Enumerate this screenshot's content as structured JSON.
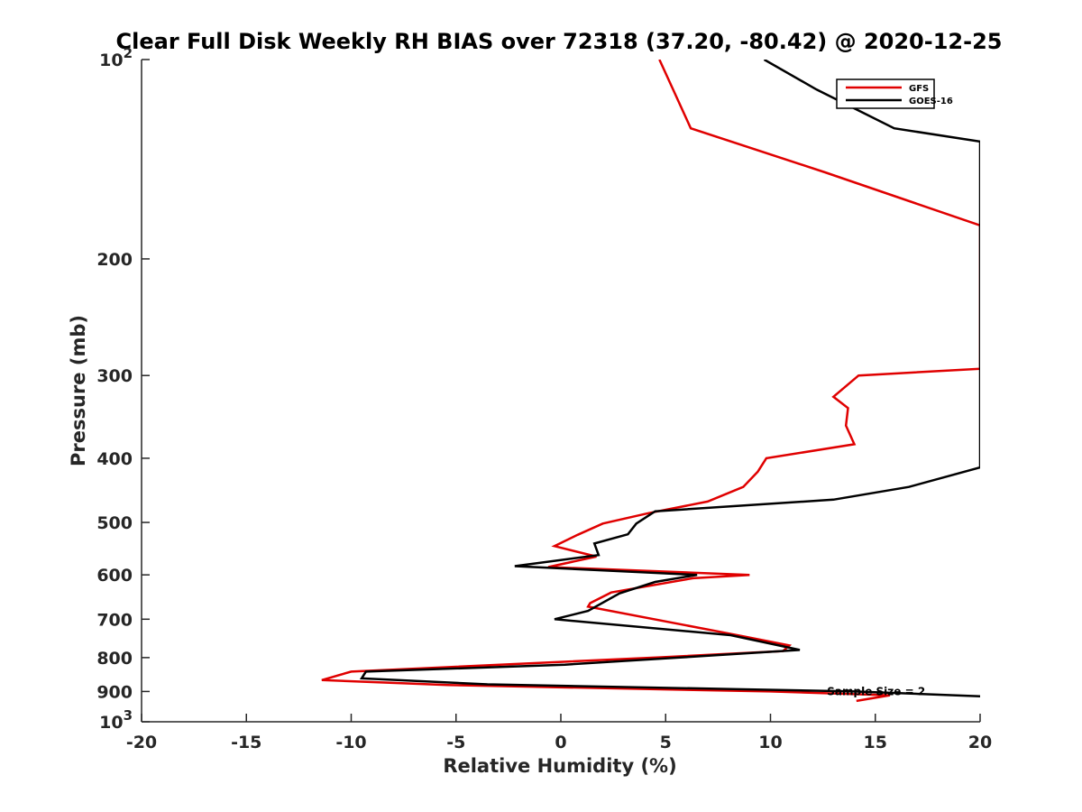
{
  "chart_data": {
    "type": "line",
    "title": "Clear Full Disk Weekly RH BIAS over 72318 (37.20, -80.42) @ 2020-12-25",
    "xlabel": "Relative Humidity (%)",
    "ylabel": "Pressure (mb)",
    "xlim": [
      -20,
      20
    ],
    "ylim": [
      100,
      1000
    ],
    "y_scale": "log",
    "y_reversed": true,
    "grid": false,
    "legend_position": "top-right",
    "x_ticks": [
      "-20",
      "-15",
      "-10",
      "-5",
      "0",
      "5",
      "10",
      "15",
      "20"
    ],
    "x_tick_values": [
      -20,
      -15,
      -10,
      -5,
      0,
      5,
      10,
      15,
      20
    ],
    "y_ticks": [
      {
        "value": 100,
        "base": "10",
        "exp": "2"
      },
      {
        "value": 200,
        "base": "200",
        "exp": ""
      },
      {
        "value": 300,
        "base": "300",
        "exp": ""
      },
      {
        "value": 400,
        "base": "400",
        "exp": ""
      },
      {
        "value": 500,
        "base": "500",
        "exp": ""
      },
      {
        "value": 600,
        "base": "600",
        "exp": ""
      },
      {
        "value": 700,
        "base": "700",
        "exp": ""
      },
      {
        "value": 800,
        "base": "800",
        "exp": ""
      },
      {
        "value": 900,
        "base": "900",
        "exp": ""
      },
      {
        "value": 1000,
        "base": "10",
        "exp": "3"
      }
    ],
    "annotation": "Sample Size = 2",
    "annotation_at": {
      "x": 12.7,
      "p": 900
    },
    "series": [
      {
        "name": "GFS",
        "color": "#e00000",
        "points": [
          {
            "x": 4.7,
            "p": 100
          },
          {
            "x": 5.3,
            "p": 110
          },
          {
            "x": 6.2,
            "p": 127
          },
          {
            "x": 12.6,
            "p": 148
          },
          {
            "x": 20,
            "p": 178
          },
          {
            "x": 20,
            "p": 293
          },
          {
            "x": 14.2,
            "p": 300
          },
          {
            "x": 13.0,
            "p": 323
          },
          {
            "x": 13.7,
            "p": 336
          },
          {
            "x": 13.6,
            "p": 357
          },
          {
            "x": 14.0,
            "p": 381
          },
          {
            "x": 9.8,
            "p": 400
          },
          {
            "x": 9.4,
            "p": 419
          },
          {
            "x": 8.7,
            "p": 442
          },
          {
            "x": 7.0,
            "p": 465
          },
          {
            "x": 4.2,
            "p": 484
          },
          {
            "x": 2.0,
            "p": 502
          },
          {
            "x": 0.8,
            "p": 522
          },
          {
            "x": -0.3,
            "p": 543
          },
          {
            "x": 1.7,
            "p": 563
          },
          {
            "x": -0.6,
            "p": 584
          },
          {
            "x": 9.0,
            "p": 600
          },
          {
            "x": 6.3,
            "p": 607
          },
          {
            "x": 2.4,
            "p": 638
          },
          {
            "x": 1.4,
            "p": 662
          },
          {
            "x": 1.3,
            "p": 670
          },
          {
            "x": 8.8,
            "p": 744
          },
          {
            "x": 10.9,
            "p": 767
          },
          {
            "x": 10.6,
            "p": 782
          },
          {
            "x": 4.8,
            "p": 799
          },
          {
            "x": -10.0,
            "p": 840
          },
          {
            "x": -11.4,
            "p": 865
          },
          {
            "x": -5.4,
            "p": 880
          },
          {
            "x": 10.0,
            "p": 900
          },
          {
            "x": 15.7,
            "p": 912
          },
          {
            "x": 14.1,
            "p": 930
          }
        ]
      },
      {
        "name": "GOES-16",
        "color": "#000000",
        "points": [
          {
            "x": 9.7,
            "p": 100
          },
          {
            "x": 12.2,
            "p": 111
          },
          {
            "x": 15.9,
            "p": 127
          },
          {
            "x": 20,
            "p": 133
          },
          {
            "x": 20,
            "p": 413
          },
          {
            "x": 16.6,
            "p": 442
          },
          {
            "x": 13.0,
            "p": 462
          },
          {
            "x": 4.5,
            "p": 481
          },
          {
            "x": 3.6,
            "p": 502
          },
          {
            "x": 3.2,
            "p": 521
          },
          {
            "x": 1.6,
            "p": 538
          },
          {
            "x": 1.8,
            "p": 560
          },
          {
            "x": -2.2,
            "p": 582
          },
          {
            "x": 6.5,
            "p": 600
          },
          {
            "x": 4.5,
            "p": 615
          },
          {
            "x": 2.8,
            "p": 640
          },
          {
            "x": 1.3,
            "p": 680
          },
          {
            "x": -0.3,
            "p": 700
          },
          {
            "x": 8.1,
            "p": 740
          },
          {
            "x": 10.5,
            "p": 768
          },
          {
            "x": 11.4,
            "p": 779
          },
          {
            "x": 5.6,
            "p": 800
          },
          {
            "x": 0.2,
            "p": 820
          },
          {
            "x": -9.3,
            "p": 840
          },
          {
            "x": -9.5,
            "p": 860
          },
          {
            "x": -3.5,
            "p": 878
          },
          {
            "x": 14.0,
            "p": 900
          },
          {
            "x": 20,
            "p": 915
          }
        ]
      }
    ]
  }
}
